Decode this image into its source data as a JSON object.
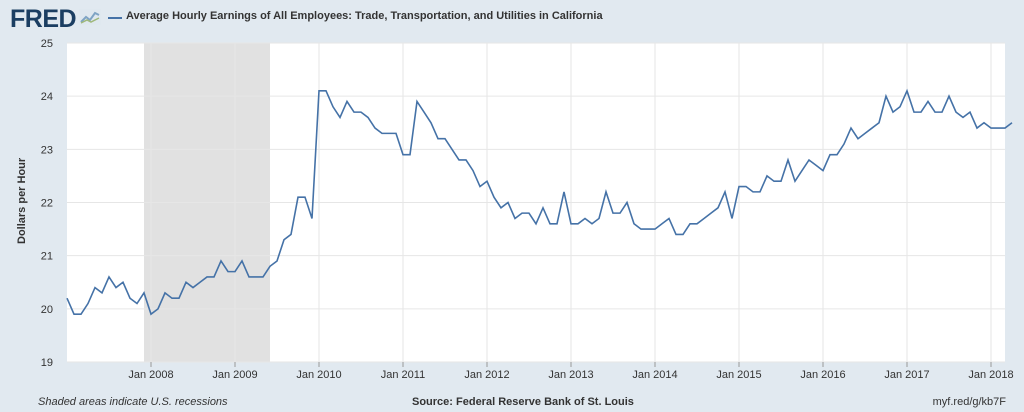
{
  "header": {
    "logo": "FRED",
    "legend_label": "Average Hourly Earnings of All Employees: Trade, Transportation, and Utilities in California"
  },
  "footer": {
    "recession_note": "Shaded areas indicate U.S. recessions",
    "source": "Source: Federal Reserve Bank of St. Louis",
    "short_url": "myf.red/g/kb7F"
  },
  "colors": {
    "line": "#4572a7",
    "recession": "#e1e1e1",
    "background": "#e1e9f0",
    "plot_bg": "#ffffff",
    "grid": "#e6e6e6"
  },
  "chart_data": {
    "type": "line",
    "title": "Average Hourly Earnings of All Employees: Trade, Transportation, and Utilities in California",
    "xlabel": "",
    "ylabel": "Dollars per Hour",
    "ylim": [
      19,
      25
    ],
    "yticks": [
      19,
      20,
      21,
      22,
      23,
      24,
      25
    ],
    "xticks": [
      "Jan 2008",
      "Jan 2009",
      "Jan 2010",
      "Jan 2011",
      "Jan 2012",
      "Jan 2013",
      "Jan 2014",
      "Jan 2015",
      "Jan 2016",
      "Jan 2017",
      "Jan 2018"
    ],
    "x_start": "2007-01",
    "x_end": "2018-03",
    "grid": true,
    "recessions": [
      {
        "start": "2007-12",
        "end": "2009-06"
      }
    ],
    "series": [
      {
        "name": "Average Hourly Earnings of All Employees: Trade, Transportation, and Utilities in California",
        "values": [
          20.2,
          19.9,
          19.9,
          20.1,
          20.4,
          20.3,
          20.6,
          20.4,
          20.5,
          20.2,
          20.1,
          20.3,
          19.9,
          20.0,
          20.3,
          20.2,
          20.2,
          20.5,
          20.4,
          20.5,
          20.6,
          20.6,
          20.9,
          20.7,
          20.7,
          20.9,
          20.6,
          20.6,
          20.6,
          20.8,
          20.9,
          21.3,
          21.4,
          22.1,
          22.1,
          21.7,
          24.1,
          24.1,
          23.8,
          23.6,
          23.9,
          23.7,
          23.7,
          23.6,
          23.4,
          23.3,
          23.3,
          23.3,
          22.9,
          22.9,
          23.9,
          23.7,
          23.5,
          23.2,
          23.2,
          23.0,
          22.8,
          22.8,
          22.6,
          22.3,
          22.4,
          22.1,
          21.9,
          22.0,
          21.7,
          21.8,
          21.8,
          21.6,
          21.9,
          21.6,
          21.6,
          22.2,
          21.6,
          21.6,
          21.7,
          21.6,
          21.7,
          22.2,
          21.8,
          21.8,
          22.0,
          21.6,
          21.5,
          21.5,
          21.5,
          21.6,
          21.7,
          21.4,
          21.4,
          21.6,
          21.6,
          21.7,
          21.8,
          21.9,
          22.2,
          21.7,
          22.3,
          22.3,
          22.2,
          22.2,
          22.5,
          22.4,
          22.4,
          22.8,
          22.4,
          22.6,
          22.8,
          22.7,
          22.6,
          22.9,
          22.9,
          23.1,
          23.4,
          23.2,
          23.3,
          23.4,
          23.5,
          24.0,
          23.7,
          23.8,
          24.1,
          23.7,
          23.7,
          23.9,
          23.7,
          23.7,
          24.0,
          23.7,
          23.6,
          23.7,
          23.4,
          23.5,
          23.4,
          23.4,
          23.4,
          23.5
        ]
      }
    ]
  }
}
